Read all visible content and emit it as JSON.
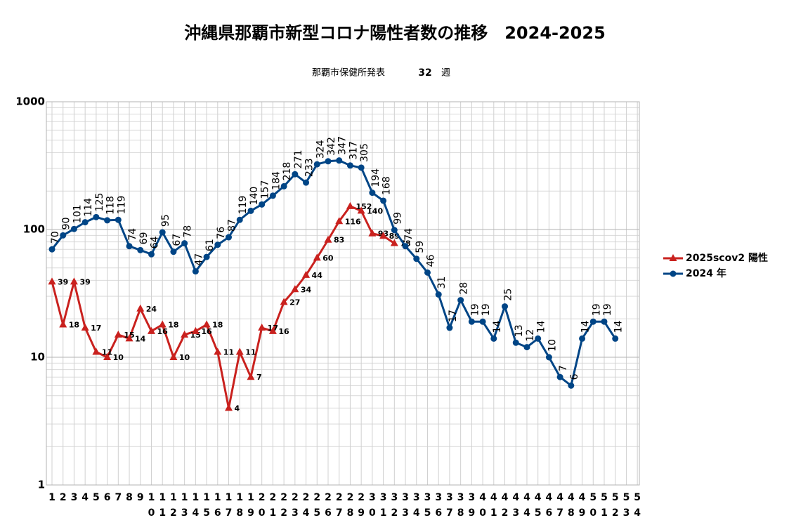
{
  "chart_data": {
    "type": "line",
    "title": "沖縄県那覇市新型コロナ陽性者数の推移　2024-2025",
    "subtitle": "那覇市保健所発表",
    "subtitle_week": "32",
    "subtitle_unit": "週",
    "categories": [
      "1",
      "2",
      "3",
      "4",
      "5",
      "6",
      "7",
      "8",
      "9",
      "10",
      "11",
      "12",
      "13",
      "14",
      "15",
      "16",
      "17",
      "18",
      "19",
      "20",
      "21",
      "22",
      "23",
      "24",
      "25",
      "26",
      "27",
      "28",
      "29",
      "30",
      "31",
      "32",
      "33",
      "34",
      "35",
      "36",
      "37",
      "38",
      "39",
      "40",
      "41",
      "42",
      "43",
      "44",
      "45",
      "46",
      "47",
      "48",
      "49",
      "50",
      "51",
      "52",
      "53",
      "54"
    ],
    "series": [
      {
        "name": "2025scov2 陽性",
        "color": "#c9211e",
        "marker": "triangle",
        "values": [
          39,
          18,
          39,
          17,
          11,
          10,
          15,
          14,
          24,
          16,
          18,
          10,
          15,
          16,
          18,
          11,
          4,
          11,
          7,
          17,
          16,
          27,
          34,
          44,
          60,
          83,
          116,
          152,
          140,
          93,
          89,
          78,
          null,
          null,
          null,
          null,
          null,
          null,
          null,
          null,
          null,
          null,
          null,
          null,
          null,
          null,
          null,
          null,
          null,
          null,
          null,
          null,
          null,
          null
        ]
      },
      {
        "name": "2024 年",
        "color": "#004586",
        "marker": "circle",
        "values": [
          70,
          90,
          101,
          114,
          125,
          118,
          119,
          74,
          69,
          64,
          95,
          67,
          78,
          47,
          61,
          76,
          87,
          119,
          140,
          157,
          184,
          218,
          271,
          233,
          324,
          342,
          347,
          317,
          305,
          194,
          168,
          99,
          74,
          59,
          46,
          31,
          17,
          28,
          19,
          19,
          14,
          25,
          13,
          12,
          14,
          10,
          7,
          6,
          14,
          19,
          19,
          14,
          null,
          null
        ]
      }
    ],
    "ylim": [
      1,
      1000
    ],
    "yticks": [
      1,
      10,
      100,
      1000
    ],
    "log_scale": true,
    "grid": true,
    "minor_grid": true,
    "legend": "right"
  }
}
